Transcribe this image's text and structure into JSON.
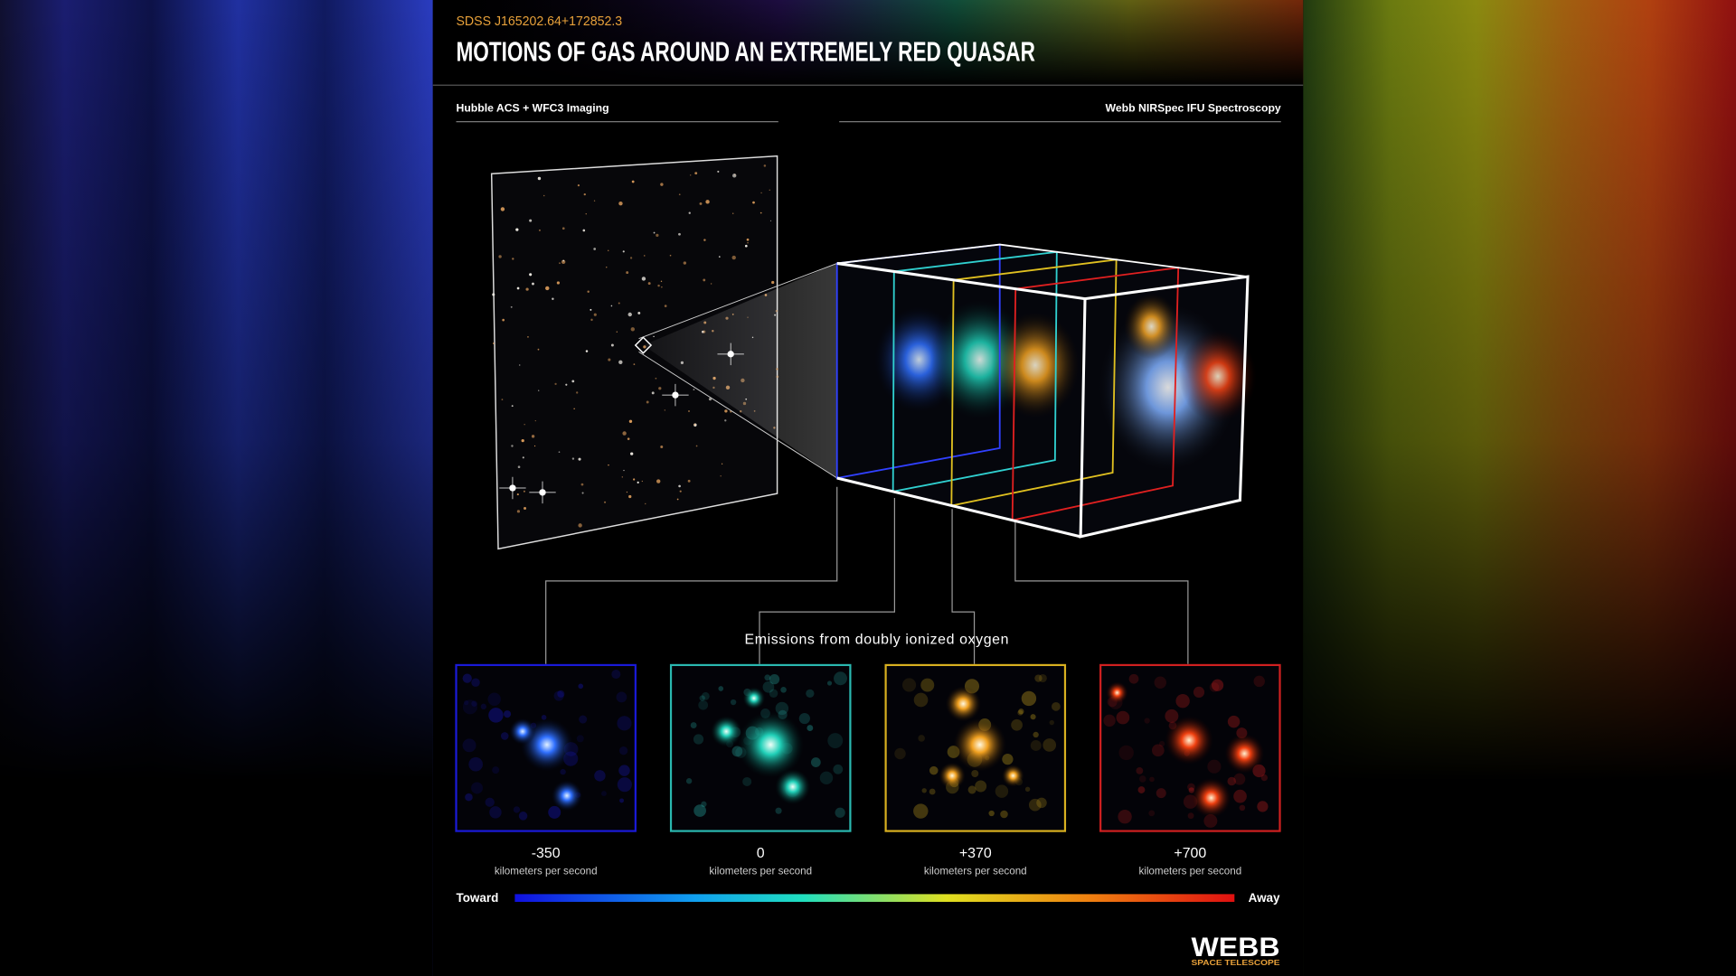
{
  "header": {
    "subtitle": "SDSS J165202.64+172852.3",
    "title": "MOTIONS OF GAS AROUND AN EXTREMELY RED QUASAR"
  },
  "left_label": "Hubble ACS + WFC3 Imaging",
  "right_label": "Webb NIRSpec IFU Spectroscopy",
  "emissions_label": "Emissions from doubly ionized oxygen",
  "panels": [
    {
      "velocity": "-350",
      "unit": "kilometers per second"
    },
    {
      "velocity": "0",
      "unit": "kilometers per second"
    },
    {
      "velocity": "+370",
      "unit": "kilometers per second"
    },
    {
      "velocity": "+700",
      "unit": "kilometers per second"
    }
  ],
  "scale": {
    "start": "Toward",
    "end": "Away"
  },
  "logo": {
    "name": "WEBB",
    "tagline": "SPACE TELESCOPE"
  }
}
